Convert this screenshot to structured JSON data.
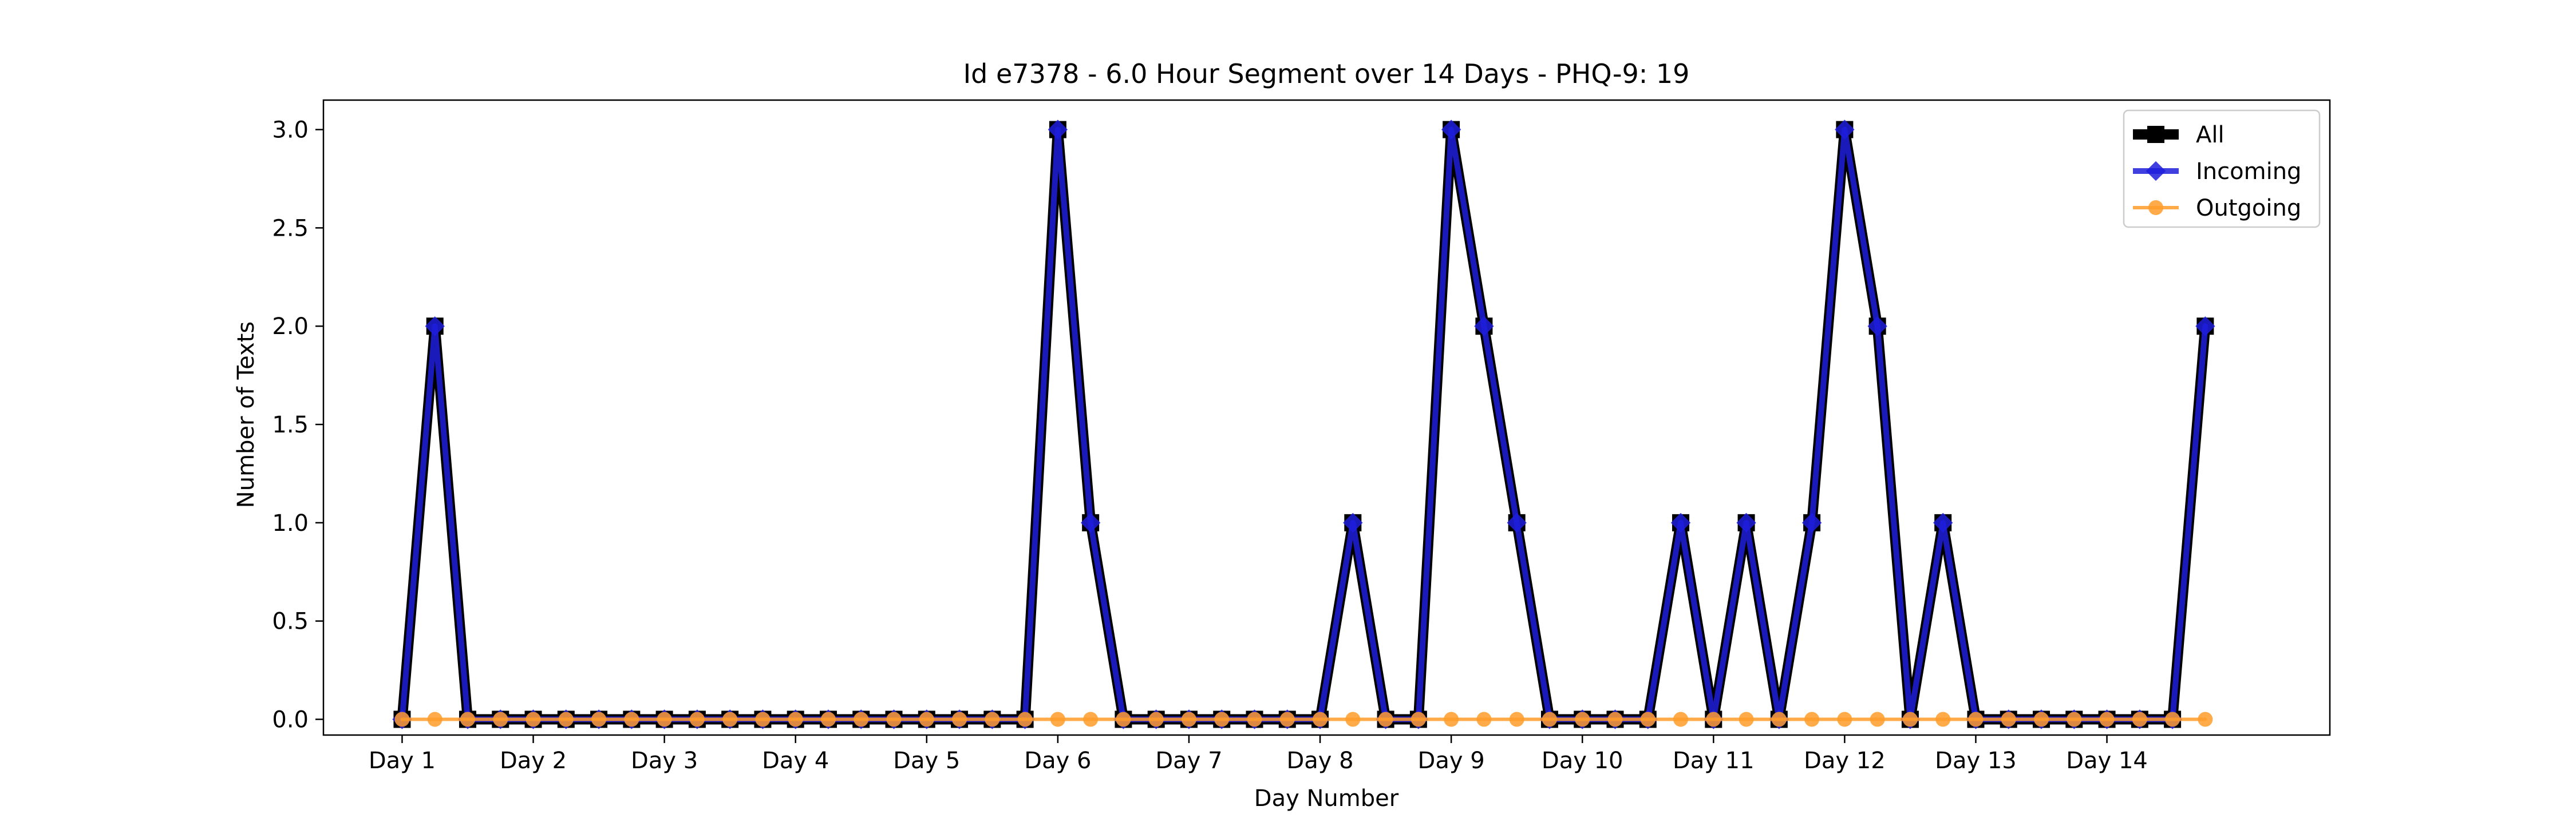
{
  "chart_data": {
    "type": "line",
    "title": "Id e7378 - 6.0 Hour Segment over 14 Days - PHQ-9: 19",
    "xlabel": "Day Number",
    "ylabel": "Number of Texts",
    "ylim": [
      -0.08,
      3.15
    ],
    "yticks": [
      "0.0",
      "0.5",
      "1.0",
      "1.5",
      "2.0",
      "2.5",
      "3.0"
    ],
    "ytick_values": [
      0,
      0.5,
      1.0,
      1.5,
      2.0,
      2.5,
      3.0
    ],
    "xticks": [
      "Day 1",
      "Day 2",
      "Day 3",
      "Day 4",
      "Day 5",
      "Day 6",
      "Day 7",
      "Day 8",
      "Day 9",
      "Day 10",
      "Day 11",
      "Day 12",
      "Day 13",
      "Day 14"
    ],
    "xtick_values": [
      1,
      2,
      3,
      4,
      5,
      6,
      7,
      8,
      9,
      10,
      11,
      12,
      13,
      14
    ],
    "xlim": [
      0.4,
      15.7
    ],
    "grid": false,
    "legend_position": "top-right",
    "x": [
      1,
      1.25,
      1.5,
      1.75,
      2,
      2.25,
      2.5,
      2.75,
      3,
      3.25,
      3.5,
      3.75,
      4,
      4.25,
      4.5,
      4.75,
      5,
      5.25,
      5.5,
      5.75,
      6,
      6.25,
      6.5,
      6.75,
      7,
      7.25,
      7.5,
      7.75,
      8,
      8.25,
      8.5,
      8.75,
      9,
      9.25,
      9.5,
      9.75,
      10,
      10.25,
      10.5,
      10.75,
      11,
      11.25,
      11.5,
      11.75,
      12,
      12.25,
      12.5,
      12.75,
      13,
      13.25,
      13.5,
      13.75,
      14,
      14.25,
      14.5,
      14.75
    ],
    "series": [
      {
        "name": "All",
        "color": "#000000",
        "marker": "square",
        "values": [
          0,
          2,
          0,
          0,
          0,
          0,
          0,
          0,
          0,
          0,
          0,
          0,
          0,
          0,
          0,
          0,
          0,
          0,
          0,
          0,
          3,
          1,
          0,
          0,
          0,
          0,
          0,
          0,
          0,
          1,
          0,
          0,
          3,
          2,
          1,
          0,
          0,
          0,
          0,
          1,
          0,
          1,
          0,
          1,
          3,
          2,
          0,
          1,
          0,
          0,
          0,
          0,
          0,
          0,
          0,
          2
        ]
      },
      {
        "name": "Incoming",
        "color": "#1f1fdc",
        "marker": "diamond",
        "values": [
          0,
          2,
          0,
          0,
          0,
          0,
          0,
          0,
          0,
          0,
          0,
          0,
          0,
          0,
          0,
          0,
          0,
          0,
          0,
          0,
          3,
          1,
          0,
          0,
          0,
          0,
          0,
          0,
          0,
          1,
          0,
          0,
          3,
          2,
          1,
          0,
          0,
          0,
          0,
          1,
          0,
          1,
          0,
          1,
          3,
          2,
          0,
          1,
          0,
          0,
          0,
          0,
          0,
          0,
          0,
          2
        ]
      },
      {
        "name": "Outgoing",
        "color": "#ff9c2a",
        "marker": "circle",
        "values": [
          0,
          0,
          0,
          0,
          0,
          0,
          0,
          0,
          0,
          0,
          0,
          0,
          0,
          0,
          0,
          0,
          0,
          0,
          0,
          0,
          0,
          0,
          0,
          0,
          0,
          0,
          0,
          0,
          0,
          0,
          0,
          0,
          0,
          0,
          0,
          0,
          0,
          0,
          0,
          0,
          0,
          0,
          0,
          0,
          0,
          0,
          0,
          0,
          0,
          0,
          0,
          0,
          0,
          0,
          0,
          0
        ]
      }
    ]
  }
}
